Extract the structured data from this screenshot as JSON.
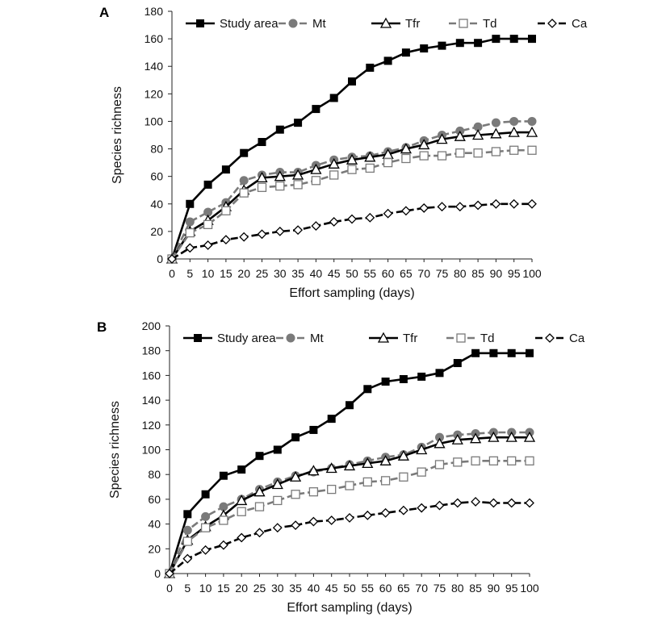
{
  "chart_data": [
    {
      "type": "line",
      "panel_label": "A",
      "xlabel": "Effort sampling (days)",
      "ylabel": "Species richness",
      "x": [
        0,
        5,
        10,
        15,
        20,
        25,
        30,
        35,
        40,
        45,
        50,
        55,
        60,
        65,
        70,
        75,
        80,
        85,
        90,
        95,
        100
      ],
      "xticks": [
        "0",
        "5",
        "10",
        "15",
        "20",
        "25",
        "30",
        "35",
        "40",
        "45",
        "50",
        "55",
        "60",
        "65",
        "70",
        "75",
        "80",
        "85",
        "90",
        "95",
        "100"
      ],
      "ylim": [
        0,
        180
      ],
      "yticks": [
        0,
        20,
        40,
        60,
        80,
        100,
        120,
        140,
        160,
        180
      ],
      "grid": false,
      "legend_position": "top",
      "series": [
        {
          "name": "Study area",
          "color": "#000000",
          "marker": "filled-square",
          "dash": "solid",
          "values": [
            0,
            40,
            54,
            65,
            77,
            85,
            94,
            99,
            109,
            117,
            129,
            139,
            144,
            150,
            153,
            155,
            157,
            157,
            160,
            160,
            160
          ]
        },
        {
          "name": "Mt",
          "color": "#7a7a7a",
          "marker": "filled-circle",
          "dash": "dashed",
          "values": [
            0,
            27,
            34,
            41,
            57,
            61,
            63,
            63,
            68,
            72,
            74,
            75,
            78,
            81,
            86,
            90,
            93,
            96,
            99,
            100,
            100
          ]
        },
        {
          "name": "Tfr",
          "color": "#000000",
          "marker": "open-triangle",
          "dash": "solid",
          "values": [
            0,
            20,
            28,
            38,
            50,
            59,
            60,
            61,
            65,
            69,
            72,
            74,
            76,
            80,
            83,
            87,
            89,
            90,
            91,
            92,
            92
          ]
        },
        {
          "name": "Td",
          "color": "#7a7a7a",
          "marker": "open-square",
          "dash": "dashed",
          "values": [
            0,
            19,
            25,
            35,
            48,
            52,
            53,
            54,
            57,
            61,
            65,
            66,
            70,
            73,
            75,
            75,
            77,
            77,
            78,
            79,
            79
          ]
        },
        {
          "name": "Ca",
          "color": "#000000",
          "marker": "open-diamond",
          "dash": "dashed",
          "values": [
            0,
            8,
            10,
            14,
            16,
            18,
            20,
            21,
            24,
            27,
            29,
            30,
            33,
            35,
            37,
            38,
            38,
            39,
            40,
            40,
            40
          ]
        }
      ]
    },
    {
      "type": "line",
      "panel_label": "B",
      "xlabel": "Effort sampling (days)",
      "ylabel": "Species richness",
      "x": [
        0,
        5,
        10,
        15,
        20,
        25,
        30,
        35,
        40,
        45,
        50,
        55,
        60,
        65,
        70,
        75,
        80,
        85,
        90,
        95,
        100
      ],
      "xticks": [
        "0",
        "5",
        "10",
        "15",
        "20",
        "25",
        "30",
        "35",
        "40",
        "45",
        "50",
        "55",
        "60",
        "65",
        "70",
        "75",
        "80",
        "85",
        "90",
        "95",
        "100"
      ],
      "ylim": [
        0,
        200
      ],
      "yticks": [
        0,
        20,
        40,
        60,
        80,
        100,
        120,
        140,
        160,
        180,
        200
      ],
      "grid": false,
      "legend_position": "top",
      "series": [
        {
          "name": "Study area",
          "color": "#000000",
          "marker": "filled-square",
          "dash": "solid",
          "values": [
            0,
            48,
            64,
            79,
            84,
            95,
            100,
            110,
            116,
            125,
            136,
            149,
            155,
            157,
            159,
            162,
            170,
            178,
            178,
            178,
            178
          ]
        },
        {
          "name": "Mt",
          "color": "#7a7a7a",
          "marker": "filled-circle",
          "dash": "dashed",
          "values": [
            0,
            35,
            46,
            54,
            60,
            68,
            74,
            79,
            82,
            85,
            88,
            91,
            94,
            96,
            102,
            110,
            112,
            113,
            114,
            114,
            114
          ]
        },
        {
          "name": "Tfr",
          "color": "#000000",
          "marker": "open-triangle",
          "dash": "solid",
          "values": [
            0,
            27,
            38,
            47,
            59,
            66,
            72,
            78,
            83,
            85,
            87,
            89,
            91,
            95,
            100,
            105,
            108,
            109,
            110,
            110,
            110
          ]
        },
        {
          "name": "Td",
          "color": "#7a7a7a",
          "marker": "open-square",
          "dash": "dashed",
          "values": [
            0,
            26,
            37,
            43,
            50,
            54,
            59,
            64,
            66,
            68,
            71,
            74,
            75,
            78,
            82,
            88,
            90,
            91,
            91,
            91,
            91
          ]
        },
        {
          "name": "Ca",
          "color": "#000000",
          "marker": "open-diamond",
          "dash": "dashed",
          "values": [
            0,
            12,
            19,
            23,
            29,
            33,
            37,
            39,
            42,
            43,
            45,
            47,
            49,
            51,
            53,
            55,
            57,
            58,
            57,
            57,
            57
          ]
        }
      ]
    }
  ]
}
